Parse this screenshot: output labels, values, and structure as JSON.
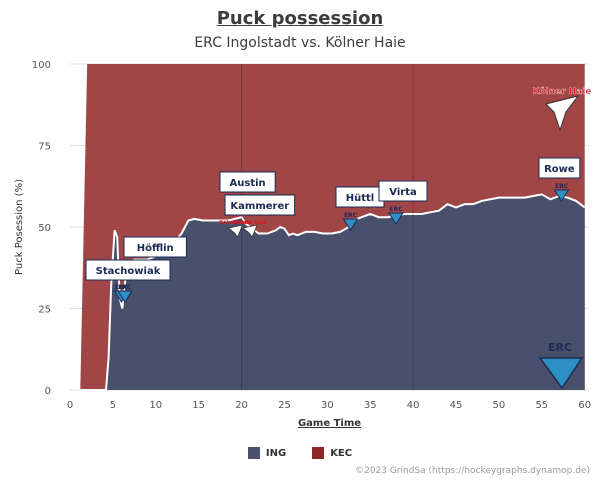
{
  "title": "Puck possession",
  "subtitle": "ERC Ingolstadt vs. Kölner Haie",
  "credit": "©2023 GrindSa (https://hockeygraphs.dynamop.de)",
  "team_logos": {
    "kec": "Kölner Haie",
    "erc": "ERC"
  },
  "colors": {
    "ING": "#48506b",
    "KEC": "#a14646",
    "line": "#ffffff",
    "grid": "#dddddd"
  },
  "chart_data": {
    "type": "area",
    "xlabel": "Game Time",
    "ylabel": "Puck Posession (%)",
    "xlim": [
      0,
      60.5
    ],
    "ylim": [
      0,
      100
    ],
    "xticks": [
      0,
      5,
      10,
      15,
      20,
      25,
      30,
      35,
      40,
      45,
      50,
      55,
      60
    ],
    "yticks": [
      0,
      25,
      50,
      75,
      100
    ],
    "vlines": [
      20,
      40
    ],
    "legend": {
      "position": "bottom",
      "entries": [
        "ING",
        "KEC"
      ]
    },
    "series": [
      {
        "name": "ING",
        "x": [
          1.2,
          4.2,
          4.5,
          4.8,
          5.2,
          5.5,
          5.8,
          6.1,
          6.5,
          7.0,
          7.5,
          8.0,
          9.0,
          10.0,
          11.0,
          12.0,
          13.0,
          13.8,
          14.5,
          15.5,
          16.5,
          17.5,
          18.5,
          19.2,
          20.0,
          20.5,
          21.0,
          21.5,
          22.0,
          22.5,
          23.0,
          23.5,
          24.0,
          24.5,
          25.0,
          25.5,
          26.0,
          26.5,
          27.5,
          28.5,
          29.5,
          30.5,
          31.5,
          32.5,
          33.0,
          34.0,
          35.0,
          36.0,
          37.0,
          38.0,
          39.0,
          40.0,
          41.0,
          42.0,
          43.0,
          44.0,
          45.0,
          46.0,
          47.0,
          48.0,
          49.0,
          50.0,
          51.0,
          52.0,
          53.0,
          54.0,
          55.0,
          56.0,
          57.0,
          58.0,
          59.0,
          60.0
        ],
        "values": [
          0,
          0,
          10,
          32,
          49,
          47,
          28,
          25,
          35,
          38,
          40,
          40,
          40,
          41,
          43,
          45,
          48,
          52,
          52.5,
          52,
          52,
          52,
          52,
          52.5,
          53,
          51,
          50,
          49,
          48,
          48,
          48,
          48.5,
          49,
          50,
          49.5,
          47.5,
          48,
          47.5,
          48.5,
          48.5,
          48,
          48,
          48.5,
          50,
          52,
          53,
          54,
          53,
          53,
          53.5,
          54,
          54,
          54,
          54.5,
          55,
          57,
          56,
          57,
          57,
          58,
          58.5,
          59,
          59,
          59,
          59,
          59.5,
          60,
          58.5,
          59.5,
          59,
          58,
          56
        ]
      },
      {
        "name": "KEC",
        "x": [
          1.2,
          1.6,
          2.0,
          2.4,
          60.0
        ],
        "values": [
          100,
          100,
          100,
          100,
          100
        ]
      }
    ],
    "annotations": [
      {
        "label": "Stachowiak",
        "x": 6.0,
        "team": "ERC"
      },
      {
        "label": "Höfflin",
        "x": 6.4,
        "team": "ERC"
      },
      {
        "label": "Austin",
        "x": 19.3,
        "team": "KEC"
      },
      {
        "label": "Kammerer",
        "x": 21.0,
        "team": "KEC"
      },
      {
        "label": "Hüttl",
        "x": 32.7,
        "team": "ERC"
      },
      {
        "label": "Virta",
        "x": 38.0,
        "team": "ERC"
      },
      {
        "label": "Rowe",
        "x": 57.3,
        "team": "ERC"
      }
    ]
  }
}
